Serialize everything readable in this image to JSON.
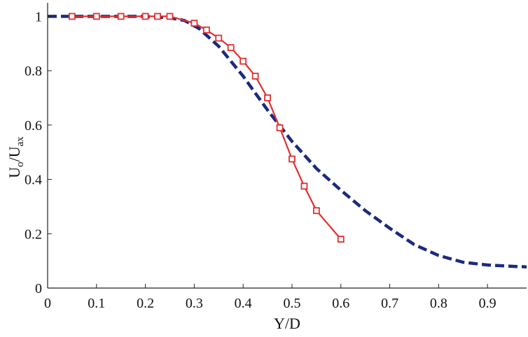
{
  "chart_data": {
    "type": "line",
    "title": "",
    "xlabel": "Y/D",
    "ylabel": {
      "base": "U",
      "sub1": "o",
      "slash": "/U",
      "sub2": "ax"
    },
    "xlim": [
      0,
      0.98
    ],
    "ylim": [
      0,
      1.05
    ],
    "xticks": [
      "0",
      "0.1",
      "0.2",
      "0.3",
      "0.4",
      "0.5",
      "0.6",
      "0.7",
      "0.8",
      "0.9"
    ],
    "yticks": [
      "0",
      "0.2",
      "0.4",
      "0.6",
      "0.8",
      "1"
    ],
    "grid": false,
    "legend": "none",
    "series": [
      {
        "style": "dashed-line",
        "color": "#1b2a80",
        "x": [
          0.0,
          0.05,
          0.1,
          0.15,
          0.2,
          0.25,
          0.28,
          0.31,
          0.35,
          0.4,
          0.45,
          0.5,
          0.55,
          0.6,
          0.65,
          0.7,
          0.75,
          0.8,
          0.85,
          0.9,
          0.95,
          0.98
        ],
        "y": [
          1.0,
          1.0,
          1.0,
          1.0,
          1.0,
          0.995,
          0.985,
          0.955,
          0.89,
          0.78,
          0.655,
          0.54,
          0.44,
          0.36,
          0.285,
          0.22,
          0.16,
          0.12,
          0.095,
          0.085,
          0.08,
          0.078
        ]
      },
      {
        "style": "line-square-markers",
        "color": "#e03030",
        "x": [
          0.05,
          0.1,
          0.15,
          0.2,
          0.225,
          0.25,
          0.3,
          0.325,
          0.35,
          0.375,
          0.4,
          0.425,
          0.45,
          0.475,
          0.5,
          0.525,
          0.55,
          0.6
        ],
        "y": [
          1.0,
          1.0,
          1.0,
          1.0,
          1.0,
          1.0,
          0.975,
          0.95,
          0.92,
          0.885,
          0.835,
          0.78,
          0.7,
          0.59,
          0.475,
          0.375,
          0.285,
          0.18
        ]
      }
    ]
  }
}
